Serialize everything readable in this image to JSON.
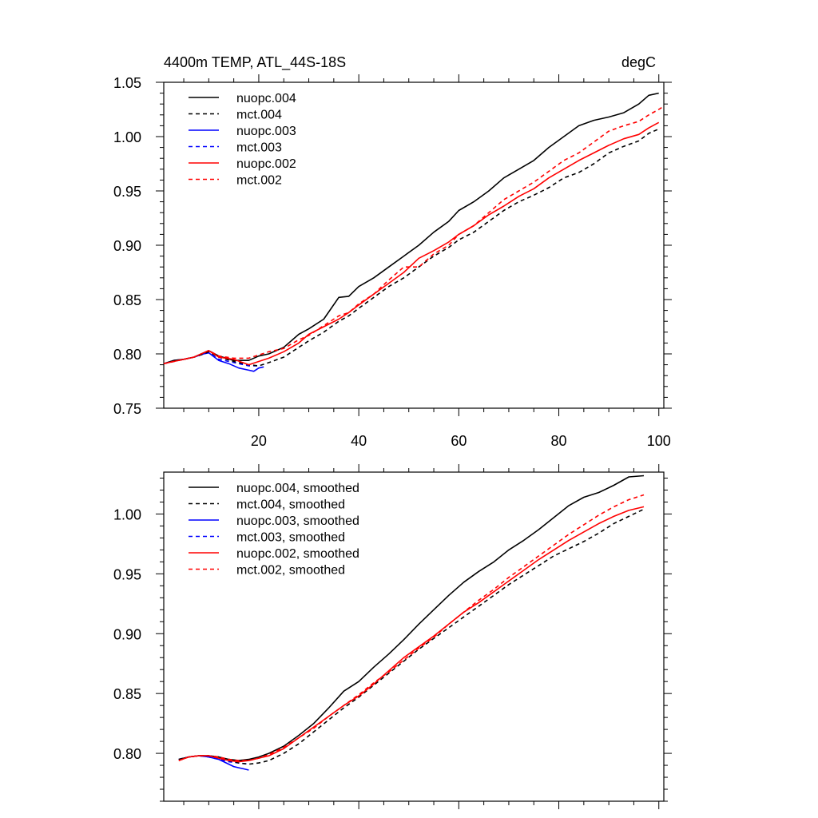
{
  "chart_data": [
    {
      "type": "line",
      "title": "4400m TEMP, ATL_44S-18S",
      "units": "degC",
      "xlim": [
        1,
        101
      ],
      "ylim": [
        0.75,
        1.05
      ],
      "x_ticks": [
        20,
        40,
        60,
        80,
        100
      ],
      "y_ticks": [
        0.75,
        0.8,
        0.85,
        0.9,
        0.95,
        1.0,
        1.05
      ],
      "y_tick_labels": [
        "0.75",
        "0.80",
        "0.85",
        "0.90",
        "0.95",
        "1.00",
        "1.05"
      ],
      "legend_position": "top-left",
      "series": [
        {
          "name": "nuopc.004",
          "color": "#000000",
          "dash": "solid",
          "x": [
            1,
            3,
            5,
            7,
            9,
            10,
            12,
            15,
            18,
            20,
            22,
            25,
            28,
            30,
            33,
            36,
            38,
            40,
            43,
            46,
            49,
            52,
            55,
            58,
            60,
            63,
            66,
            69,
            72,
            75,
            78,
            81,
            84,
            87,
            90,
            93,
            96,
            98,
            100
          ],
          "y": [
            0.791,
            0.794,
            0.795,
            0.797,
            0.801,
            0.803,
            0.798,
            0.794,
            0.794,
            0.798,
            0.8,
            0.806,
            0.818,
            0.823,
            0.832,
            0.852,
            0.853,
            0.862,
            0.87,
            0.88,
            0.89,
            0.9,
            0.912,
            0.922,
            0.932,
            0.94,
            0.95,
            0.962,
            0.97,
            0.978,
            0.99,
            1.0,
            1.01,
            1.015,
            1.018,
            1.022,
            1.03,
            1.038,
            1.04
          ]
        },
        {
          "name": "mct.004",
          "color": "#000000",
          "dash": "dashed",
          "x": [
            1,
            3,
            5,
            7,
            9,
            10,
            12,
            15,
            18,
            20,
            22,
            25,
            28,
            30,
            33,
            36,
            38,
            40,
            43,
            46,
            49,
            52,
            55,
            58,
            60,
            63,
            66,
            69,
            72,
            75,
            78,
            81,
            84,
            87,
            90,
            93,
            96,
            98,
            100
          ],
          "y": [
            0.791,
            0.793,
            0.795,
            0.797,
            0.8,
            0.802,
            0.797,
            0.793,
            0.79,
            0.789,
            0.792,
            0.797,
            0.806,
            0.812,
            0.82,
            0.83,
            0.835,
            0.842,
            0.852,
            0.862,
            0.87,
            0.88,
            0.89,
            0.898,
            0.905,
            0.912,
            0.922,
            0.932,
            0.94,
            0.946,
            0.953,
            0.962,
            0.967,
            0.975,
            0.985,
            0.991,
            0.996,
            1.003,
            1.007
          ]
        },
        {
          "name": "nuopc.003",
          "color": "#0000ff",
          "dash": "solid",
          "x": [
            1,
            3,
            5,
            7,
            9,
            10,
            12,
            14,
            16,
            18,
            19,
            20,
            21
          ],
          "y": [
            0.791,
            0.794,
            0.795,
            0.797,
            0.8,
            0.801,
            0.794,
            0.791,
            0.787,
            0.785,
            0.784,
            0.787,
            0.788
          ]
        },
        {
          "name": "mct.003",
          "color": "#0000ff",
          "dash": "dashed",
          "x": [
            1,
            3,
            5,
            7,
            9,
            10,
            12,
            14,
            16,
            18,
            20
          ],
          "y": [
            0.791,
            0.793,
            0.795,
            0.797,
            0.8,
            0.801,
            0.795,
            0.793,
            0.791,
            0.789,
            0.789
          ]
        },
        {
          "name": "nuopc.002",
          "color": "#ff0000",
          "dash": "solid",
          "x": [
            1,
            3,
            5,
            7,
            9,
            10,
            12,
            15,
            18,
            20,
            22,
            25,
            28,
            30,
            33,
            36,
            38,
            40,
            43,
            46,
            49,
            52,
            55,
            58,
            60,
            63,
            66,
            69,
            72,
            75,
            78,
            81,
            84,
            87,
            90,
            93,
            96,
            98,
            100
          ],
          "y": [
            0.791,
            0.793,
            0.795,
            0.797,
            0.801,
            0.803,
            0.797,
            0.795,
            0.79,
            0.793,
            0.796,
            0.802,
            0.81,
            0.818,
            0.825,
            0.832,
            0.838,
            0.845,
            0.855,
            0.865,
            0.875,
            0.888,
            0.895,
            0.903,
            0.91,
            0.918,
            0.928,
            0.936,
            0.945,
            0.952,
            0.962,
            0.97,
            0.978,
            0.985,
            0.992,
            0.998,
            1.002,
            1.008,
            1.013
          ]
        },
        {
          "name": "mct.002",
          "color": "#ff0000",
          "dash": "dashed",
          "x": [
            1,
            3,
            5,
            7,
            9,
            10,
            12,
            15,
            18,
            20,
            22,
            25,
            28,
            30,
            33,
            36,
            38,
            40,
            43,
            46,
            49,
            52,
            55,
            58,
            60,
            63,
            66,
            69,
            72,
            75,
            78,
            81,
            84,
            87,
            90,
            93,
            96,
            98,
            100,
            101
          ],
          "y": [
            0.791,
            0.793,
            0.795,
            0.797,
            0.801,
            0.803,
            0.798,
            0.796,
            0.796,
            0.799,
            0.802,
            0.805,
            0.813,
            0.817,
            0.826,
            0.835,
            0.838,
            0.846,
            0.855,
            0.868,
            0.88,
            0.88,
            0.892,
            0.9,
            0.91,
            0.918,
            0.93,
            0.942,
            0.95,
            0.958,
            0.968,
            0.978,
            0.985,
            0.995,
            1.005,
            1.01,
            1.014,
            1.02,
            1.025,
            1.028
          ]
        }
      ]
    },
    {
      "type": "line",
      "xlim": [
        1,
        101
      ],
      "ylim": [
        0.76,
        1.035
      ],
      "x_ticks": [
        20,
        40,
        60,
        80,
        100
      ],
      "y_ticks": [
        0.8,
        0.85,
        0.9,
        0.95,
        1.0
      ],
      "y_tick_labels": [
        "0.80",
        "0.85",
        "0.90",
        "0.95",
        "1.00"
      ],
      "legend_position": "top-left",
      "series": [
        {
          "name": "nuopc.004, smoothed",
          "color": "#000000",
          "dash": "solid",
          "x": [
            4,
            6,
            8,
            10,
            12,
            14,
            16,
            18,
            20,
            22,
            25,
            28,
            31,
            34,
            37,
            40,
            43,
            46,
            49,
            52,
            55,
            58,
            61,
            64,
            67,
            70,
            73,
            76,
            79,
            82,
            85,
            88,
            91,
            94,
            97
          ],
          "y": [
            0.795,
            0.797,
            0.798,
            0.798,
            0.797,
            0.795,
            0.794,
            0.795,
            0.797,
            0.8,
            0.806,
            0.815,
            0.825,
            0.838,
            0.852,
            0.86,
            0.872,
            0.883,
            0.895,
            0.908,
            0.92,
            0.932,
            0.943,
            0.952,
            0.96,
            0.97,
            0.978,
            0.987,
            0.997,
            1.007,
            1.014,
            1.018,
            1.024,
            1.031,
            1.032
          ]
        },
        {
          "name": "mct.004, smoothed",
          "color": "#000000",
          "dash": "dashed",
          "x": [
            4,
            6,
            8,
            10,
            12,
            14,
            16,
            18,
            20,
            22,
            25,
            28,
            31,
            34,
            37,
            40,
            43,
            46,
            49,
            52,
            55,
            58,
            61,
            64,
            67,
            70,
            73,
            76,
            79,
            82,
            85,
            88,
            91,
            94,
            97
          ],
          "y": [
            0.795,
            0.797,
            0.798,
            0.798,
            0.796,
            0.794,
            0.792,
            0.791,
            0.792,
            0.794,
            0.8,
            0.808,
            0.818,
            0.828,
            0.838,
            0.847,
            0.857,
            0.867,
            0.877,
            0.887,
            0.896,
            0.905,
            0.914,
            0.923,
            0.932,
            0.941,
            0.949,
            0.957,
            0.965,
            0.971,
            0.977,
            0.984,
            0.992,
            0.998,
            1.004
          ]
        },
        {
          "name": "nuopc.003, smoothed",
          "color": "#0000ff",
          "dash": "solid",
          "x": [
            4,
            6,
            8,
            10,
            12,
            14,
            15,
            16,
            17,
            18
          ],
          "y": [
            0.795,
            0.797,
            0.798,
            0.797,
            0.795,
            0.791,
            0.789,
            0.788,
            0.787,
            0.786
          ]
        },
        {
          "name": "mct.003, smoothed",
          "color": "#0000ff",
          "dash": "dashed",
          "x": [
            4,
            6,
            8,
            10,
            12,
            14,
            16,
            18
          ],
          "y": [
            0.795,
            0.797,
            0.798,
            0.797,
            0.795,
            0.793,
            0.792,
            0.791
          ]
        },
        {
          "name": "nuopc.002, smoothed",
          "color": "#ff0000",
          "dash": "solid",
          "x": [
            4,
            6,
            8,
            10,
            12,
            14,
            16,
            18,
            20,
            22,
            25,
            28,
            31,
            34,
            37,
            40,
            43,
            46,
            49,
            52,
            55,
            58,
            61,
            64,
            67,
            70,
            73,
            76,
            79,
            82,
            85,
            88,
            91,
            94,
            97
          ],
          "y": [
            0.794,
            0.797,
            0.798,
            0.798,
            0.796,
            0.794,
            0.793,
            0.794,
            0.796,
            0.798,
            0.804,
            0.813,
            0.822,
            0.831,
            0.84,
            0.848,
            0.858,
            0.869,
            0.88,
            0.889,
            0.898,
            0.908,
            0.918,
            0.926,
            0.935,
            0.944,
            0.953,
            0.962,
            0.97,
            0.978,
            0.985,
            0.992,
            0.998,
            1.003,
            1.006
          ]
        },
        {
          "name": "mct.002, smoothed",
          "color": "#ff0000",
          "dash": "dashed",
          "x": [
            4,
            6,
            8,
            10,
            12,
            14,
            16,
            18,
            20,
            22,
            25,
            28,
            31,
            34,
            37,
            40,
            43,
            46,
            49,
            52,
            55,
            58,
            61,
            64,
            67,
            70,
            73,
            76,
            79,
            82,
            85,
            88,
            91,
            94,
            97
          ],
          "y": [
            0.794,
            0.797,
            0.798,
            0.798,
            0.797,
            0.795,
            0.794,
            0.794,
            0.796,
            0.799,
            0.805,
            0.813,
            0.821,
            0.831,
            0.84,
            0.849,
            0.859,
            0.868,
            0.878,
            0.888,
            0.897,
            0.908,
            0.918,
            0.928,
            0.937,
            0.947,
            0.956,
            0.965,
            0.974,
            0.983,
            0.991,
            0.999,
            1.006,
            1.012,
            1.016
          ]
        }
      ]
    }
  ]
}
